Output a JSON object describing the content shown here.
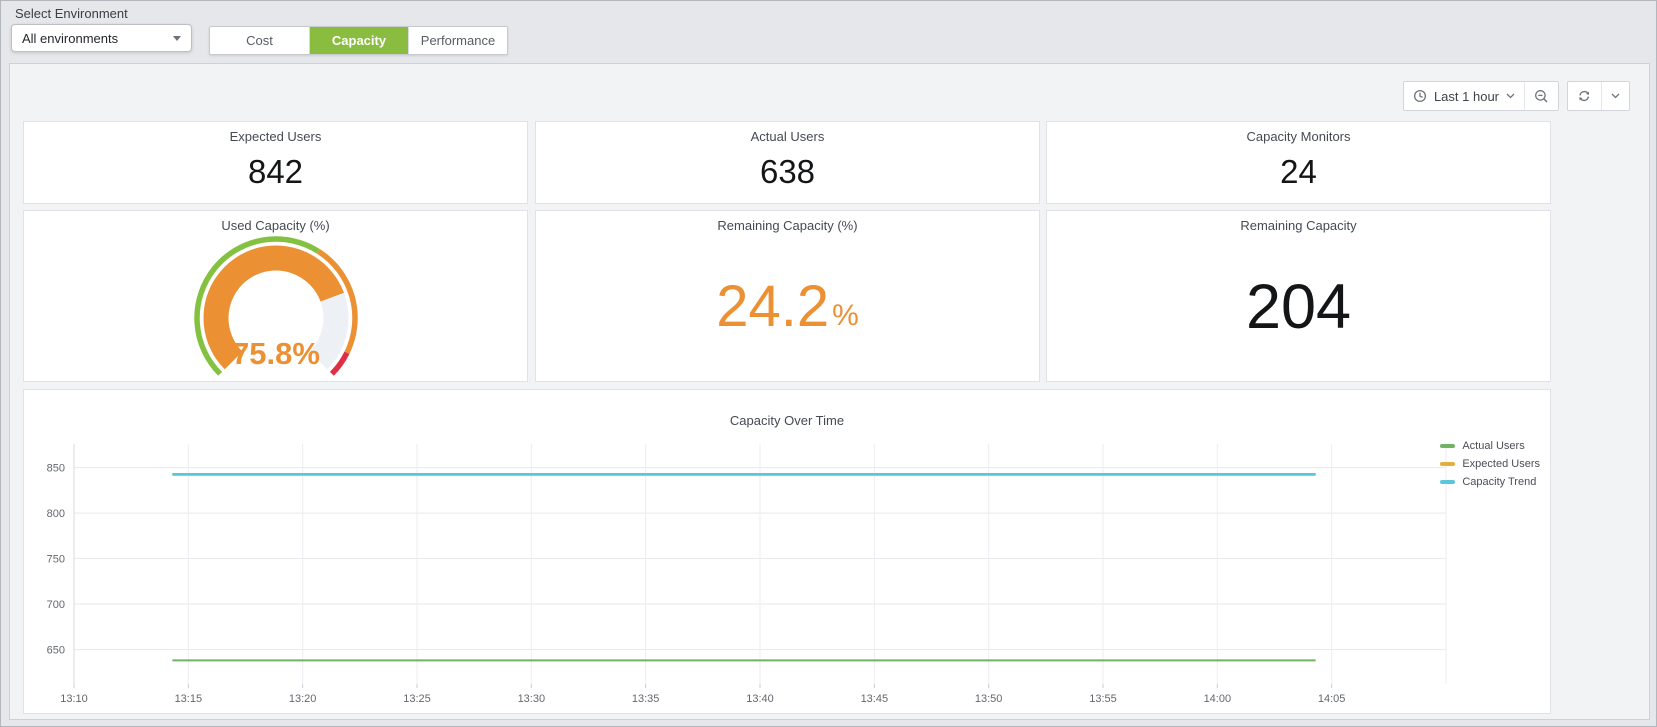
{
  "header": {
    "select_environment_label": "Select Environment",
    "environment_dropdown_value": "All environments",
    "tabs": [
      {
        "label": "Cost",
        "active": false
      },
      {
        "label": "Capacity",
        "active": true
      },
      {
        "label": "Performance",
        "active": false
      }
    ],
    "active_tab_color": "#8abc3f"
  },
  "toolbar": {
    "time_range": "Last 1 hour",
    "icons": {
      "time_picker": "clock-icon",
      "time_picker_caret": "chevron-down-icon",
      "zoom_out": "magnifier-minus-icon",
      "refresh": "refresh-icon",
      "refresh_interval_caret": "chevron-down-icon"
    }
  },
  "stat_panels_row1": [
    {
      "title": "Expected Users",
      "value": "842"
    },
    {
      "title": "Actual Users",
      "value": "638"
    },
    {
      "title": "Capacity Monitors",
      "value": "24"
    }
  ],
  "stat_panels_row2": [
    {
      "title": "Remaining Capacity (%)",
      "value": "24.2",
      "suffix": "%",
      "color": "#ec9034"
    },
    {
      "title": "Remaining Capacity",
      "value": "204",
      "color": "#131517"
    }
  ],
  "gauge_panel": {
    "title": "Used Capacity (%)",
    "value": 75.8,
    "display_value": "75.8%",
    "min": 0,
    "max": 100,
    "value_color": "#ec9034",
    "track_color": "#edf0f4",
    "thresholds": [
      {
        "color": "#85c141",
        "from": 0,
        "to": 62
      },
      {
        "color": "#ec9034",
        "from": 62,
        "to": 93
      },
      {
        "color": "#e02f44",
        "from": 93,
        "to": 100
      }
    ]
  },
  "chart_data": {
    "type": "line",
    "title": "Capacity Over Time",
    "x_ticks": [
      "13:10",
      "13:15",
      "13:20",
      "13:25",
      "13:30",
      "13:35",
      "13:40",
      "13:45",
      "13:50",
      "13:55",
      "14:00",
      "14:05"
    ],
    "x_tick_interval_min": 5,
    "x_domain_min": [
      0,
      60
    ],
    "y_ticks": [
      650,
      700,
      750,
      800,
      850
    ],
    "ylim": [
      612,
      876
    ],
    "grid": true,
    "legend_position": "right",
    "series": [
      {
        "name": "Actual Users",
        "color": "#73b264",
        "value": 638,
        "start_min": 4.3,
        "end_min": 54.3
      },
      {
        "name": "Expected Users",
        "color": "#e2af3d",
        "value": 842,
        "start_min": 4.3,
        "end_min": 54.3
      },
      {
        "name": "Capacity Trend",
        "color": "#58c7d9",
        "value": 843,
        "start_min": 4.3,
        "end_min": 54.3
      }
    ],
    "legend": [
      "Actual Users",
      "Expected Users",
      "Capacity Trend"
    ]
  },
  "colors": {
    "accent_orange": "#ec9034",
    "threshold_green": "#85c141",
    "threshold_red": "#e02f44",
    "dashboard_background": "#f2f3f5",
    "panel_background": "#ffffff"
  }
}
